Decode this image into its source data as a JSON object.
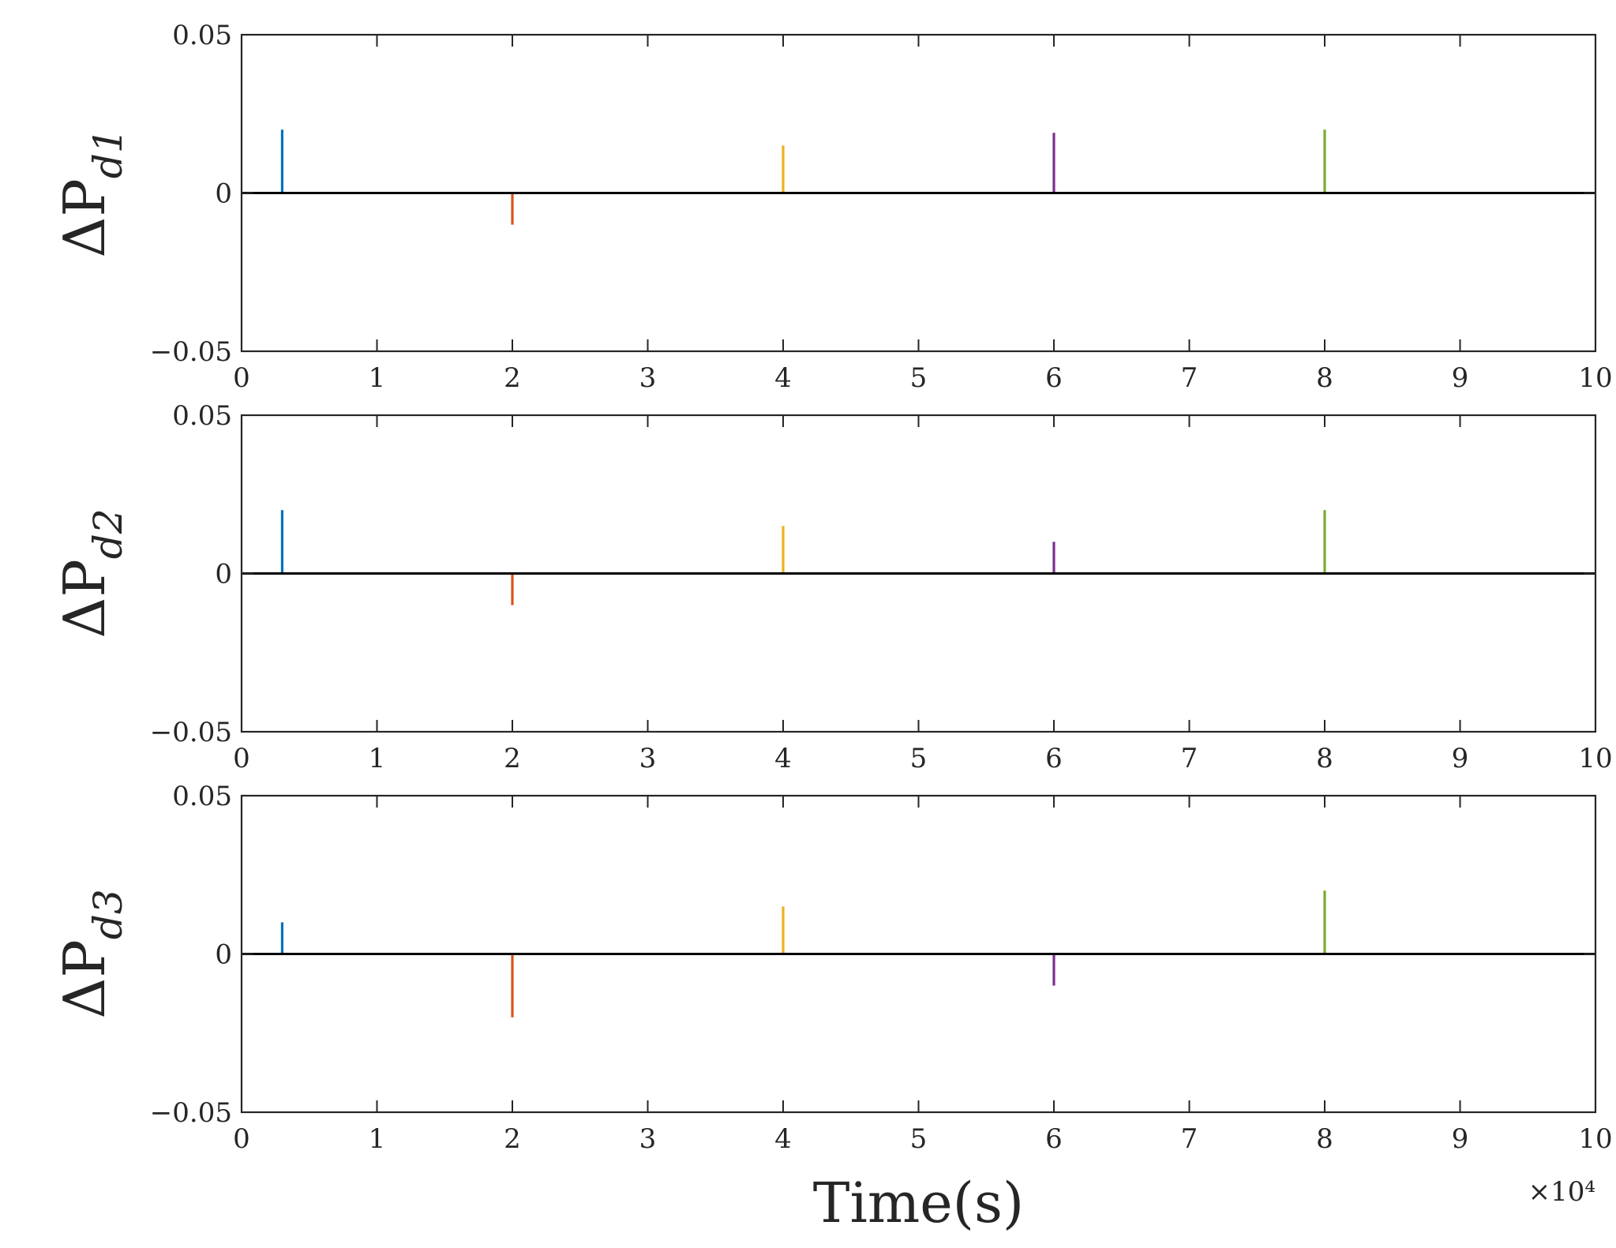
{
  "chart_data": [
    {
      "type": "line",
      "ylabel": "ΔP",
      "ylabel_subscript": "d1",
      "xlim": [
        0,
        10
      ],
      "ylim": [
        -0.05,
        0.05
      ],
      "x_ticks": [
        "0",
        "1",
        "2",
        "3",
        "4",
        "5",
        "6",
        "7",
        "8",
        "9",
        "10"
      ],
      "y_ticks": [
        "−0.05",
        "0",
        "0.05"
      ],
      "x_exponent_label": "×10⁴",
      "grid": false,
      "baseline": 0,
      "spikes": [
        {
          "x": 0.3,
          "y": 0.02,
          "color": "#0072BD"
        },
        {
          "x": 2,
          "y": -0.01,
          "color": "#D95319"
        },
        {
          "x": 4,
          "y": 0.015,
          "color": "#EDB120"
        },
        {
          "x": 6,
          "y": 0.019,
          "color": "#7E2F8E"
        },
        {
          "x": 8,
          "y": 0.02,
          "color": "#77AC30"
        }
      ]
    },
    {
      "type": "line",
      "ylabel": "ΔP",
      "ylabel_subscript": "d2",
      "xlim": [
        0,
        10
      ],
      "ylim": [
        -0.05,
        0.05
      ],
      "x_ticks": [
        "0",
        "1",
        "2",
        "3",
        "4",
        "5",
        "6",
        "7",
        "8",
        "9",
        "10"
      ],
      "y_ticks": [
        "−0.05",
        "0",
        "0.05"
      ],
      "x_exponent_label": "×10⁴",
      "grid": false,
      "baseline": 0,
      "spikes": [
        {
          "x": 0.3,
          "y": 0.02,
          "color": "#0072BD"
        },
        {
          "x": 2,
          "y": -0.01,
          "color": "#D95319"
        },
        {
          "x": 4,
          "y": 0.015,
          "color": "#EDB120"
        },
        {
          "x": 6,
          "y": 0.01,
          "color": "#7E2F8E"
        },
        {
          "x": 8,
          "y": 0.02,
          "color": "#77AC30"
        }
      ]
    },
    {
      "type": "line",
      "ylabel": "ΔP",
      "ylabel_subscript": "d3",
      "xlabel": "Time(s)",
      "xlim": [
        0,
        10
      ],
      "ylim": [
        -0.05,
        0.05
      ],
      "x_ticks": [
        "0",
        "1",
        "2",
        "3",
        "4",
        "5",
        "6",
        "7",
        "8",
        "9",
        "10"
      ],
      "y_ticks": [
        "−0.05",
        "0",
        "0.05"
      ],
      "x_exponent_label": "×10⁴",
      "grid": false,
      "baseline": 0,
      "spikes": [
        {
          "x": 0.3,
          "y": 0.01,
          "color": "#0072BD"
        },
        {
          "x": 2,
          "y": -0.02,
          "color": "#D95319"
        },
        {
          "x": 4,
          "y": 0.015,
          "color": "#EDB120"
        },
        {
          "x": 6,
          "y": -0.01,
          "color": "#7E2F8E"
        },
        {
          "x": 8,
          "y": 0.02,
          "color": "#77AC30"
        }
      ]
    }
  ],
  "colors": {
    "axis": "#262626",
    "baseline": "#000000",
    "background": "#ffffff"
  }
}
